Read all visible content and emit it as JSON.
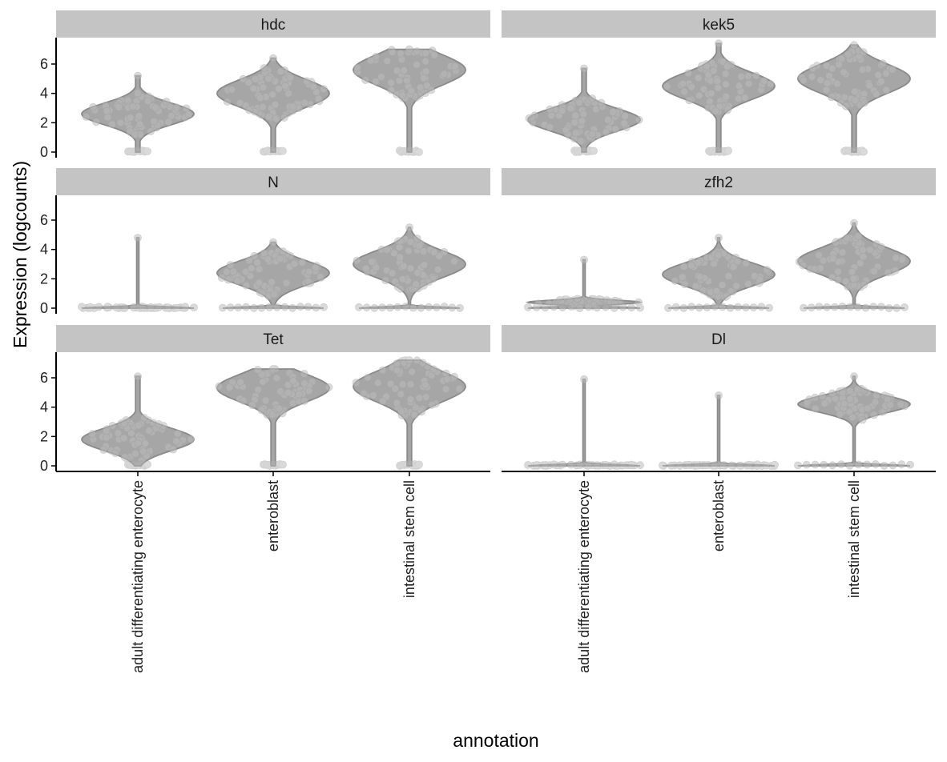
{
  "chart_data": {
    "type": "violin",
    "xlabel": "annotation",
    "ylabel": "Expression (logcounts)",
    "categories": [
      "adult differentiating enterocyte",
      "enteroblast",
      "intestinal stem cell"
    ],
    "y_ticks": [
      0,
      2,
      4,
      6
    ],
    "ylim": [
      0,
      7.5
    ],
    "facet_layout": {
      "columns": 2,
      "rows": 3
    },
    "colors": {
      "violin_fill": "#a6a6a6",
      "violin_outline": "#8a8a8a",
      "strip": "#c4c4c4"
    },
    "panels": [
      {
        "gene": "hdc",
        "violins": [
          {
            "category": "adult differentiating enterocyte",
            "max": 5.2,
            "mode": 2.6,
            "spread": 1.3,
            "zero_blob": true
          },
          {
            "category": "enteroblast",
            "max": 6.4,
            "mode": 4.0,
            "spread": 1.65,
            "zero_blob": true
          },
          {
            "category": "intestinal stem cell",
            "max": 7.0,
            "mode": 5.6,
            "spread": 1.8,
            "zero_blob": true
          }
        ]
      },
      {
        "gene": "kek5",
        "violins": [
          {
            "category": "adult differentiating enterocyte",
            "max": 5.7,
            "mode": 2.2,
            "spread": 1.35,
            "zero_blob": true
          },
          {
            "category": "enteroblast",
            "max": 7.4,
            "mode": 4.5,
            "spread": 1.6,
            "zero_blob": true
          },
          {
            "category": "intestinal stem cell",
            "max": 7.3,
            "mode": 5.0,
            "spread": 1.75,
            "zero_blob": true
          }
        ]
      },
      {
        "gene": "N",
        "violins": [
          {
            "category": "adult differentiating enterocyte",
            "max": 4.8,
            "mode": 0,
            "spread": 0.05,
            "zero_width": 1.0
          },
          {
            "category": "enteroblast",
            "max": 4.5,
            "mode": 2.4,
            "spread": 1.45,
            "zero_width": 0.9
          },
          {
            "category": "intestinal stem cell",
            "max": 5.5,
            "mode": 3.0,
            "spread": 1.6,
            "zero_width": 0.9
          }
        ]
      },
      {
        "gene": "zfh2",
        "violins": [
          {
            "category": "adult differentiating enterocyte",
            "max": 3.3,
            "mode": 0.4,
            "spread": 0.25,
            "zero_width": 1.0
          },
          {
            "category": "enteroblast",
            "max": 4.8,
            "mode": 2.3,
            "spread": 1.4,
            "zero_width": 0.9
          },
          {
            "category": "intestinal stem cell",
            "max": 5.8,
            "mode": 3.2,
            "spread": 1.6,
            "zero_width": 0.9
          }
        ]
      },
      {
        "gene": "Tet",
        "violins": [
          {
            "category": "adult differentiating enterocyte",
            "max": 6.1,
            "mode": 1.8,
            "spread": 1.35,
            "zero_blob": true
          },
          {
            "category": "enteroblast",
            "max": 6.6,
            "mode": 5.3,
            "spread": 1.65,
            "zero_blob": true
          },
          {
            "category": "intestinal stem cell",
            "max": 7.2,
            "mode": 5.4,
            "spread": 1.8,
            "zero_blob": true
          }
        ]
      },
      {
        "gene": "Dl",
        "violins": [
          {
            "category": "adult differentiating enterocyte",
            "max": 5.9,
            "mode": 0,
            "spread": 0.05,
            "zero_width": 1.0
          },
          {
            "category": "enteroblast",
            "max": 4.8,
            "mode": 0,
            "spread": 0.05,
            "zero_width": 1.0
          },
          {
            "category": "intestinal stem cell",
            "max": 6.1,
            "mode": 4.2,
            "spread": 1.0,
            "zero_width": 1.0
          }
        ]
      }
    ]
  }
}
